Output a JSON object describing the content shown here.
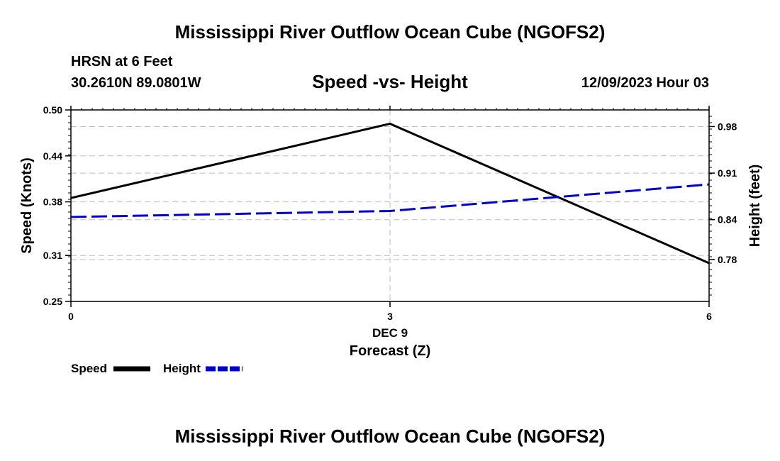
{
  "header": {
    "title": "Mississippi River Outflow Ocean Cube (NGOFS2)",
    "station": "HRSN at 6 Feet",
    "coords": "30.2610N  89.0801W",
    "datetime": "12/09/2023 Hour 03"
  },
  "footer": {
    "title": "Mississippi River Outflow Ocean Cube (NGOFS2)"
  },
  "chart_data": {
    "type": "line",
    "title": "Speed -vs- Height",
    "xlabel": "Forecast (Z)",
    "xlabel_date": "DEC 9",
    "ylabel": "Speed (Knots)",
    "y2label": "Height (feet)",
    "xlim": [
      0,
      6
    ],
    "ylim": [
      0.25,
      0.5
    ],
    "y2lim": [
      0.717,
      1.005
    ],
    "x_ticks": [
      0,
      3,
      6
    ],
    "x_tick_labels": [
      "0",
      "3",
      "6"
    ],
    "y_ticks": [
      0.25,
      0.31,
      0.38,
      0.44,
      0.5
    ],
    "y_tick_labels": [
      "0.25",
      "0.31",
      "0.38",
      "0.44",
      "0.50"
    ],
    "y2_ticks": [
      0.78,
      0.84,
      0.91,
      0.98
    ],
    "y2_tick_labels": [
      "0.78",
      "0.84",
      "0.91",
      "0.98"
    ],
    "grid": true,
    "series": [
      {
        "name": "Speed",
        "axis": "left",
        "color": "#000000",
        "dash": "solid",
        "x": [
          0,
          3,
          6
        ],
        "values": [
          0.385,
          0.482,
          0.3
        ]
      },
      {
        "name": "Height",
        "axis": "right",
        "color": "#0000cc",
        "dash": "dashed",
        "x": [
          0,
          3,
          6
        ],
        "values": [
          0.844,
          0.853,
          0.893
        ]
      }
    ],
    "legend": [
      "Speed",
      "Height"
    ]
  }
}
